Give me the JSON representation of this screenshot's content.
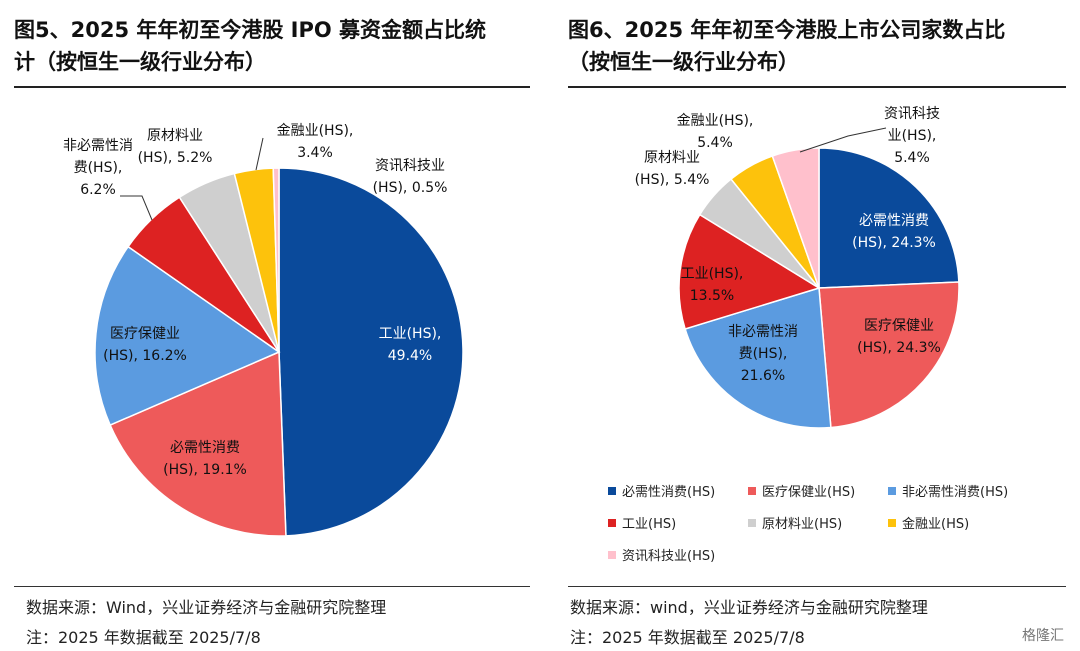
{
  "left": {
    "title_line1": "图5、2025 年年初至今港股 IPO 募资金额占比统",
    "title_line2": "计（按恒生一级行业分布）",
    "source": "数据来源：Wind，兴业证券经济与金融研究院整理",
    "note": "注：2025 年数据截至 2025/7/8"
  },
  "right": {
    "title_line1": "图6、2025 年年初至今港股上市公司家数占比",
    "title_line2": "（按恒生一级行业分布）",
    "source": "数据来源：wind，兴业证券经济与金融研究院整理",
    "note": "注：2025 年数据截至 2025/7/8",
    "watermark": "格隆汇"
  },
  "chart_data": [
    {
      "type": "pie",
      "title": "",
      "slices": [
        {
          "name": "工业(HS)",
          "value": 49.4,
          "color": "#0a4a9b",
          "label_line1": "工业(HS),",
          "label_line2": "49.4%"
        },
        {
          "name": "必需性消费(HS)",
          "value": 19.1,
          "color": "#ee5a5a",
          "label_line1": "必需性消费",
          "label_line2": "(HS), 19.1%"
        },
        {
          "name": "医疗保健业(HS)",
          "value": 16.2,
          "color": "#5b9be0",
          "label_line1": "医疗保健业",
          "label_line2": "(HS), 16.2%"
        },
        {
          "name": "非必需性消费(HS)",
          "value": 6.2,
          "color": "#dd2222",
          "label_line1": "非必需性消",
          "label_line2": "费(HS),",
          "label_line3": "6.2%"
        },
        {
          "name": "原材料业(HS)",
          "value": 5.2,
          "color": "#cfcfcf",
          "label_line1": "原材料业",
          "label_line2": "(HS), 5.2%"
        },
        {
          "name": "金融业(HS)",
          "value": 3.4,
          "color": "#fdc20c",
          "label_line1": "金融业(HS),",
          "label_line2": "3.4%"
        },
        {
          "name": "资讯科技业(HS)",
          "value": 0.5,
          "color": "#ffc0cc",
          "label_line1": "资讯科技业",
          "label_line2": "(HS), 0.5%"
        }
      ]
    },
    {
      "type": "pie",
      "title": "",
      "legend_position": "bottom",
      "slices": [
        {
          "name": "必需性消费(HS)",
          "value": 24.3,
          "color": "#0a4a9b",
          "label_line1": "必需性消费",
          "label_line2": "(HS), 24.3%"
        },
        {
          "name": "医疗保健业(HS)",
          "value": 24.3,
          "color": "#ee5a5a",
          "label_line1": "医疗保健业",
          "label_line2": "(HS), 24.3%"
        },
        {
          "name": "非必需性消费(HS)",
          "value": 21.6,
          "color": "#5b9be0",
          "label_line1": "非必需性消",
          "label_line2": "费(HS),",
          "label_line3": "21.6%"
        },
        {
          "name": "工业(HS)",
          "value": 13.5,
          "color": "#dd2222",
          "label_line1": "工业(HS),",
          "label_line2": "13.5%"
        },
        {
          "name": "原材料业(HS)",
          "value": 5.4,
          "color": "#cfcfcf",
          "label_line1": "原材料业",
          "label_line2": "(HS), 5.4%"
        },
        {
          "name": "金融业(HS)",
          "value": 5.4,
          "color": "#fdc20c",
          "label_line1": "金融业(HS),",
          "label_line2": "5.4%"
        },
        {
          "name": "资讯科技业(HS)",
          "value": 5.4,
          "color": "#ffc0cc",
          "label_line1": "资讯科技",
          "label_line2": "业(HS),",
          "label_line3": "5.4%"
        }
      ],
      "legend": [
        "必需性消费(HS)",
        "医疗保健业(HS)",
        "非必需性消费(HS)",
        "工业(HS)",
        "原材料业(HS)",
        "金融业(HS)",
        "资讯科技业(HS)"
      ]
    }
  ]
}
